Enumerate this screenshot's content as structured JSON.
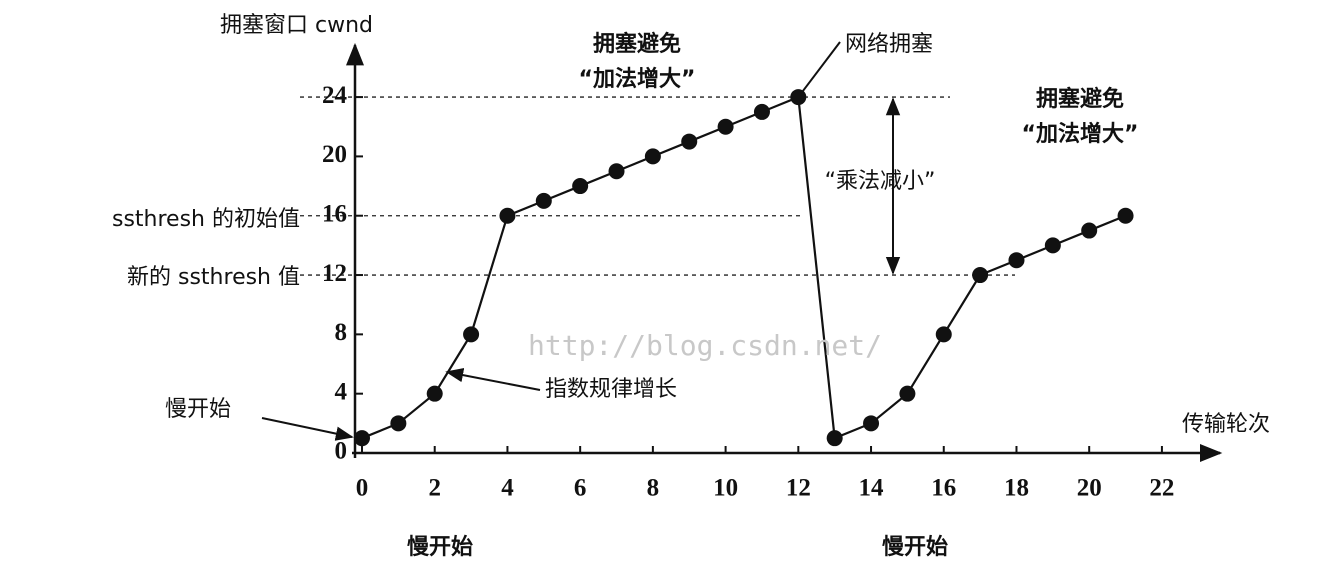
{
  "chart_data": {
    "type": "line",
    "y_label": "拥塞窗口 cwnd",
    "x_label": "传输轮次",
    "x": [
      0,
      1,
      2,
      3,
      4,
      5,
      6,
      7,
      8,
      9,
      10,
      11,
      12,
      13,
      14,
      15,
      16,
      17,
      18,
      19,
      20,
      21
    ],
    "series": [
      {
        "color": "#111111",
        "values": [
          1,
          2,
          4,
          8,
          16,
          17,
          18,
          19,
          20,
          21,
          22,
          23,
          24,
          1,
          2,
          4,
          8,
          12,
          13,
          14,
          15,
          16
        ]
      }
    ],
    "xlim": [
      0,
      23.6
    ],
    "ylim": [
      0,
      27.5
    ],
    "xticks": [
      0,
      2,
      4,
      6,
      8,
      10,
      12,
      14,
      16,
      18,
      20,
      22
    ],
    "yticks": [
      0,
      4,
      8,
      12,
      16,
      20,
      24
    ],
    "reference_lines": [
      24,
      16,
      12
    ],
    "annotations": [
      "拥塞避免",
      "“加法增大”",
      "网络拥塞",
      "拥塞避免",
      "“加法增大”",
      "“乘法减小”",
      "ssthresh 的初始值",
      "新的 ssthresh 值",
      "指数规律增长",
      "慢开始",
      "慢开始",
      "慢开始",
      "http://blog.csdn.net/"
    ]
  }
}
